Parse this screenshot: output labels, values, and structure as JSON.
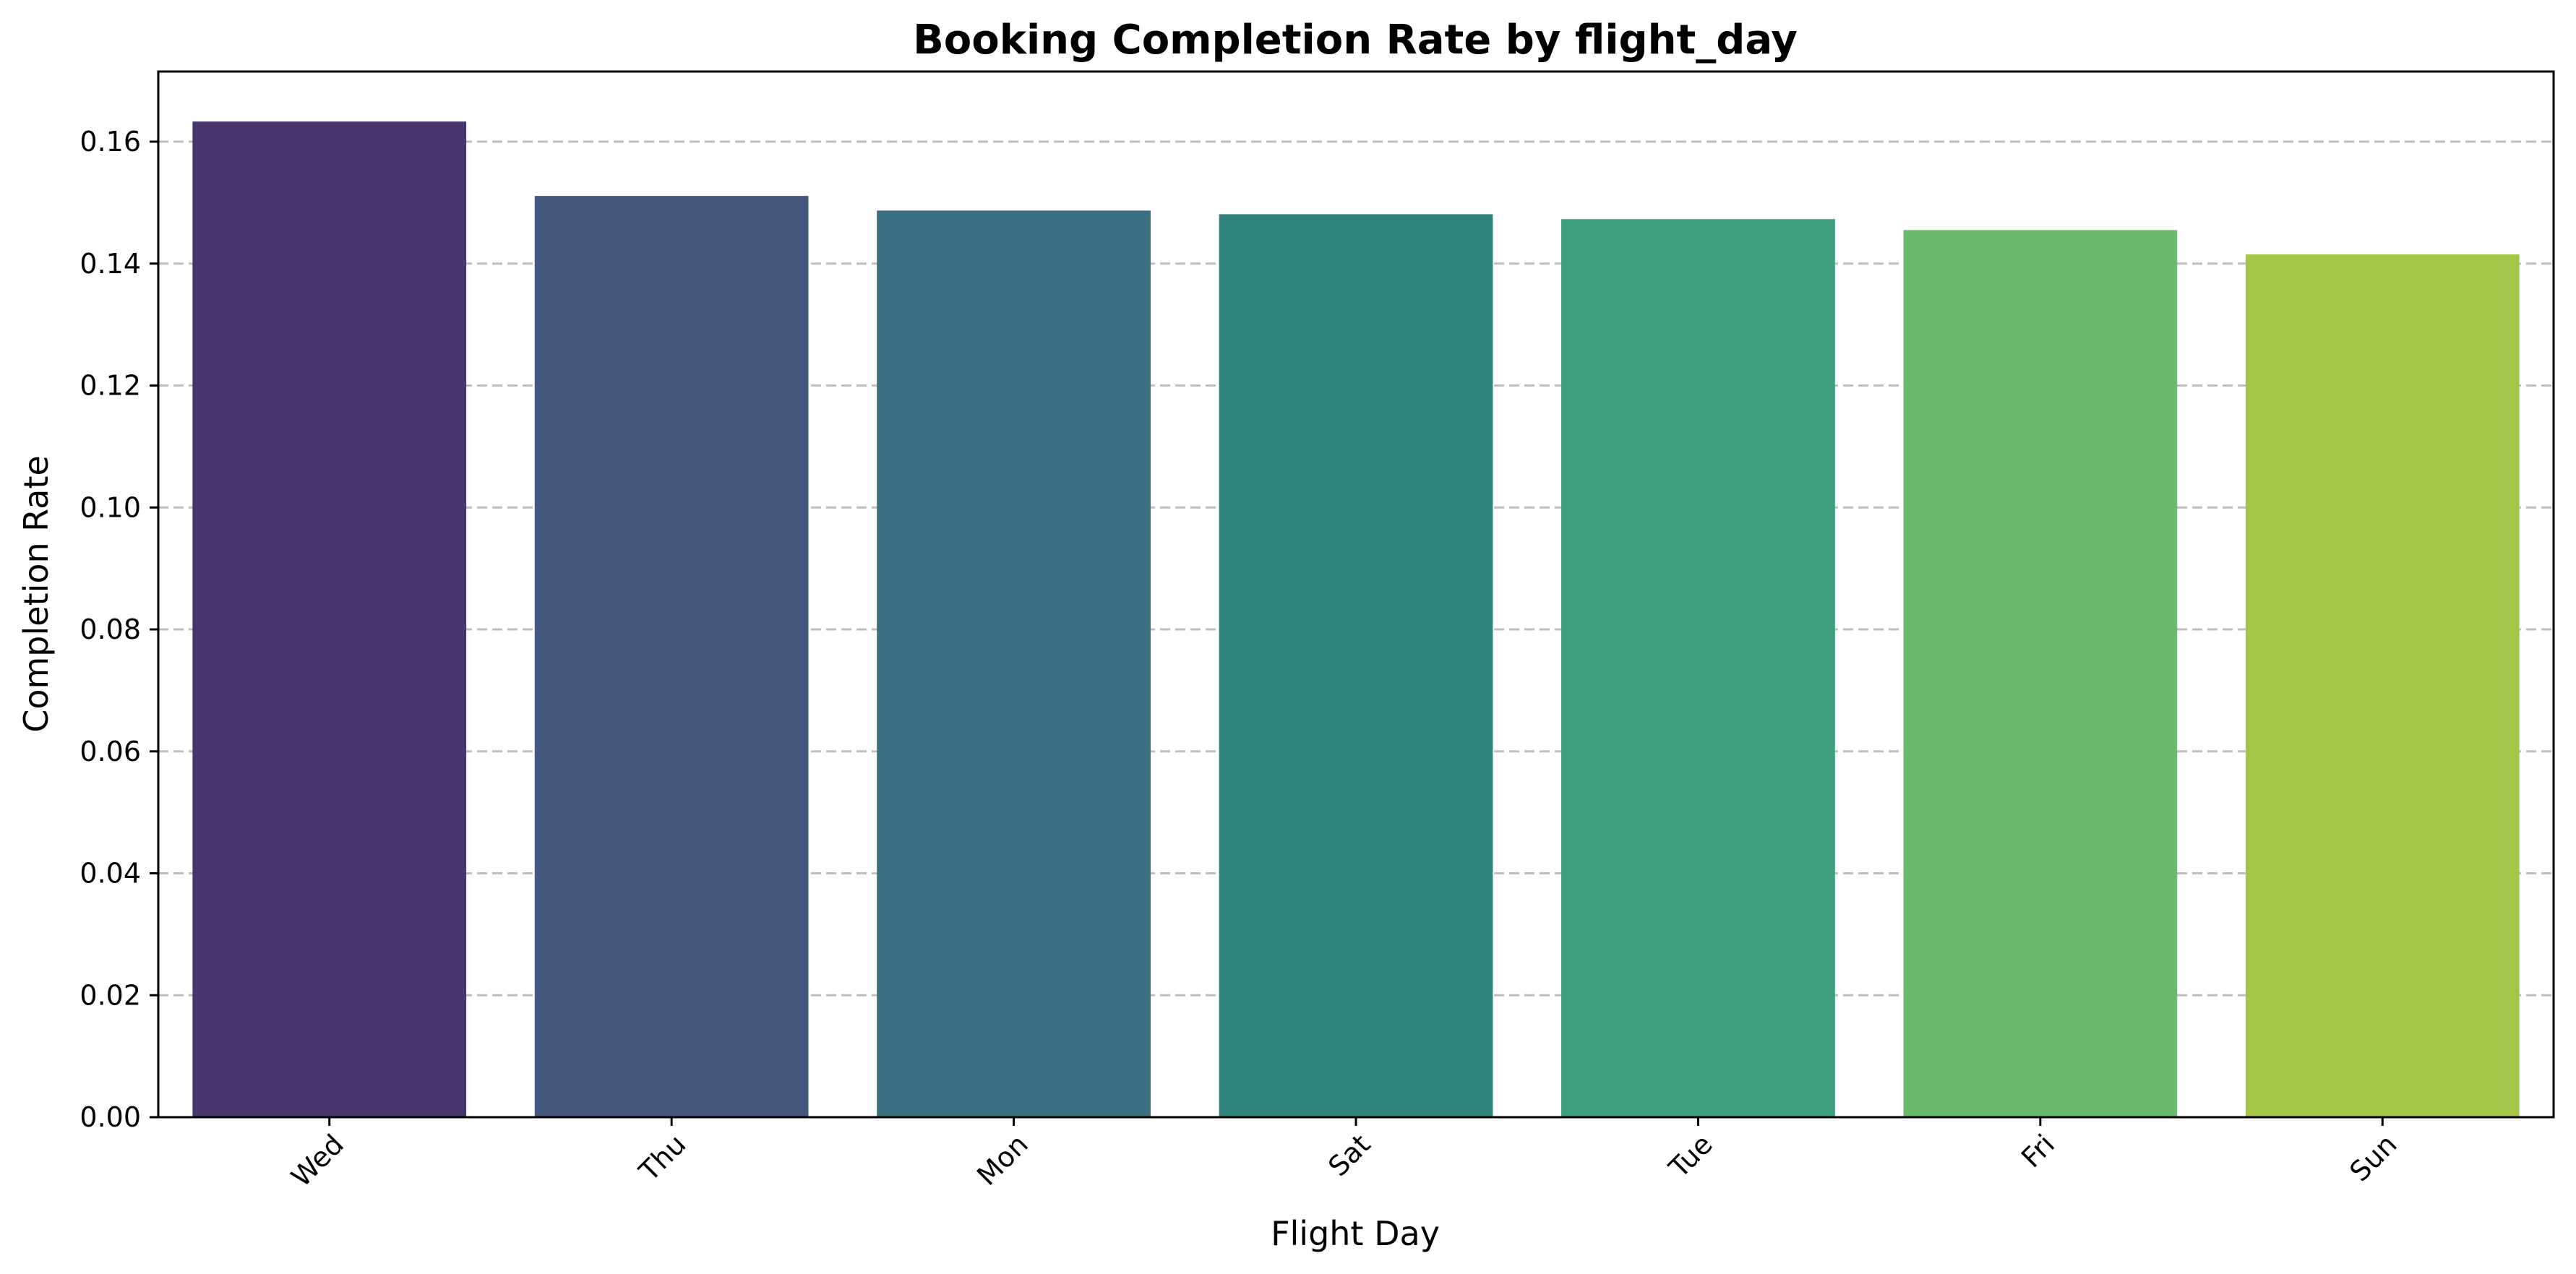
{
  "chart_data": {
    "type": "bar",
    "title": "Booking Completion Rate by flight_day",
    "xlabel": "Flight Day",
    "ylabel": "Completion Rate",
    "categories": [
      "Wed",
      "Thu",
      "Mon",
      "Sat",
      "Tue",
      "Fri",
      "Sun"
    ],
    "values": [
      0.1633,
      0.1511,
      0.1487,
      0.1481,
      0.1473,
      0.1455,
      0.1415
    ],
    "colors": [
      "#4a366f",
      "#46577e",
      "#396f80",
      "#2e847a",
      "#3b9f7b",
      "#6aba6c",
      "#a3c548"
    ],
    "yticks": [
      "0.00",
      "0.02",
      "0.04",
      "0.06",
      "0.08",
      "0.10",
      "0.12",
      "0.14",
      "0.16"
    ],
    "ylim": [
      0,
      0.1715
    ],
    "grid": "y, dashed",
    "xtick_rotation": 45
  }
}
